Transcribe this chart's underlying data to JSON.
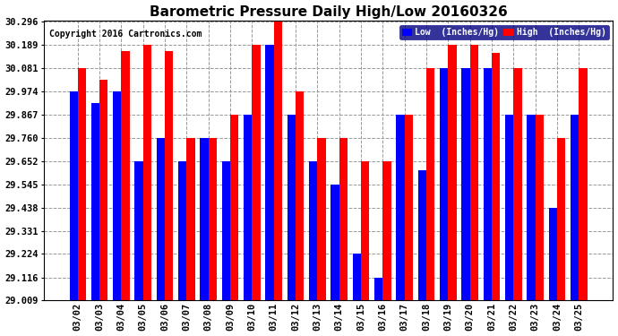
{
  "title": "Barometric Pressure Daily High/Low 20160326",
  "copyright": "Copyright 2016 Cartronics.com",
  "dates": [
    "03/02",
    "03/03",
    "03/04",
    "03/05",
    "03/06",
    "03/07",
    "03/08",
    "03/09",
    "03/10",
    "03/11",
    "03/12",
    "03/13",
    "03/14",
    "03/15",
    "03/16",
    "03/17",
    "03/18",
    "03/19",
    "03/20",
    "03/21",
    "03/22",
    "03/23",
    "03/24",
    "03/25"
  ],
  "low_values": [
    29.974,
    29.92,
    29.974,
    29.652,
    29.76,
    29.652,
    29.76,
    29.652,
    29.867,
    30.189,
    29.867,
    29.652,
    29.545,
    29.224,
    29.116,
    29.867,
    29.609,
    30.081,
    30.081,
    30.081,
    29.867,
    29.867,
    29.438,
    29.867
  ],
  "high_values": [
    30.081,
    30.028,
    30.162,
    30.189,
    30.162,
    29.76,
    29.76,
    29.867,
    30.189,
    30.296,
    29.974,
    29.76,
    29.76,
    29.652,
    29.652,
    29.867,
    30.081,
    30.189,
    30.189,
    30.152,
    30.081,
    29.867,
    29.76,
    30.081
  ],
  "low_color": "#0000ff",
  "high_color": "#ff0000",
  "bg_color": "#ffffff",
  "grid_color": "#999999",
  "ylim_min": 29.009,
  "ylim_max": 30.296,
  "yticks": [
    29.009,
    29.116,
    29.224,
    29.331,
    29.438,
    29.545,
    29.652,
    29.76,
    29.867,
    29.974,
    30.081,
    30.189,
    30.296
  ],
  "legend_low": "Low  (Inches/Hg)",
  "legend_high": "High  (Inches/Hg)",
  "title_fontsize": 11,
  "tick_fontsize": 7.5,
  "copyright_fontsize": 7
}
